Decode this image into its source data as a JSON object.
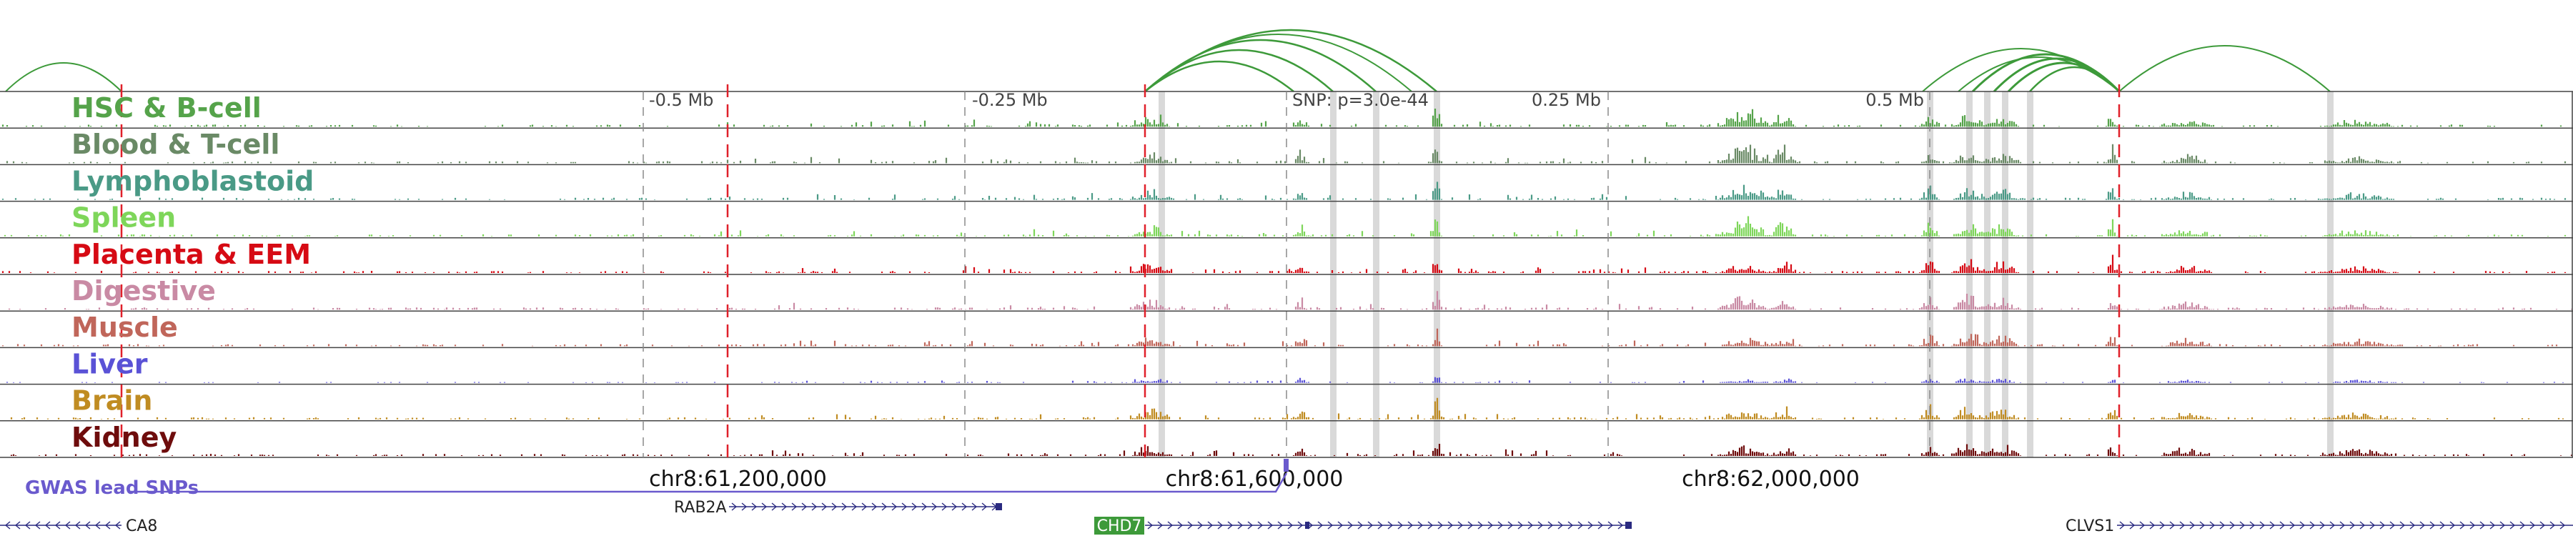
{
  "tracks": [
    {
      "name": "HSC & B-cell",
      "color": "#55a34a"
    },
    {
      "name": "Blood & T-cell",
      "color": "#6a8a66"
    },
    {
      "name": "Lymphoblastoid",
      "color": "#4a9a86"
    },
    {
      "name": "Spleen",
      "color": "#7ed65a"
    },
    {
      "name": "Placenta & EEM",
      "color": "#d60a14"
    },
    {
      "name": "Digestive",
      "color": "#c98aa4"
    },
    {
      "name": "Muscle",
      "color": "#c0665a"
    },
    {
      "name": "Liver",
      "color": "#5a52d6"
    },
    {
      "name": "Brain",
      "color": "#c08c22"
    },
    {
      "name": "Kidney",
      "color": "#6e0c0c"
    }
  ],
  "distance_ticks": [
    {
      "label": "-0.5 Mb",
      "offset_mb": -0.5
    },
    {
      "label": "-0.25 Mb",
      "offset_mb": -0.25
    },
    {
      "label": "0.25 Mb",
      "offset_mb": 0.25
    },
    {
      "label": "0.5 Mb",
      "offset_mb": 0.5
    }
  ],
  "lead_snp_label": "SNP: p=3.0e-44",
  "coordinate_labels": [
    {
      "label": "chr8:61,200,000",
      "pos": 61200000
    },
    {
      "label": "chr8:61,600,000",
      "pos": 61600000
    },
    {
      "label": "chr8:62,000,000",
      "pos": 62000000
    }
  ],
  "gwas_label": "GWAS lead SNPs",
  "genes": [
    {
      "name": "CA8",
      "strand": "-",
      "highlight": false
    },
    {
      "name": "RAB2A",
      "strand": "+",
      "highlight": false
    },
    {
      "name": "CHD7",
      "strand": "+",
      "highlight": true
    },
    {
      "name": "CLVS1",
      "strand": "+",
      "highlight": false
    }
  ],
  "colors": {
    "lead_snp_line": "#e0202a",
    "snp_band": "#d9d9d9",
    "arc": "#3d9a3a",
    "gwas": "#6a5acd",
    "gene": "#2a2a80",
    "gene_highlight": "#3d9a3a"
  }
}
